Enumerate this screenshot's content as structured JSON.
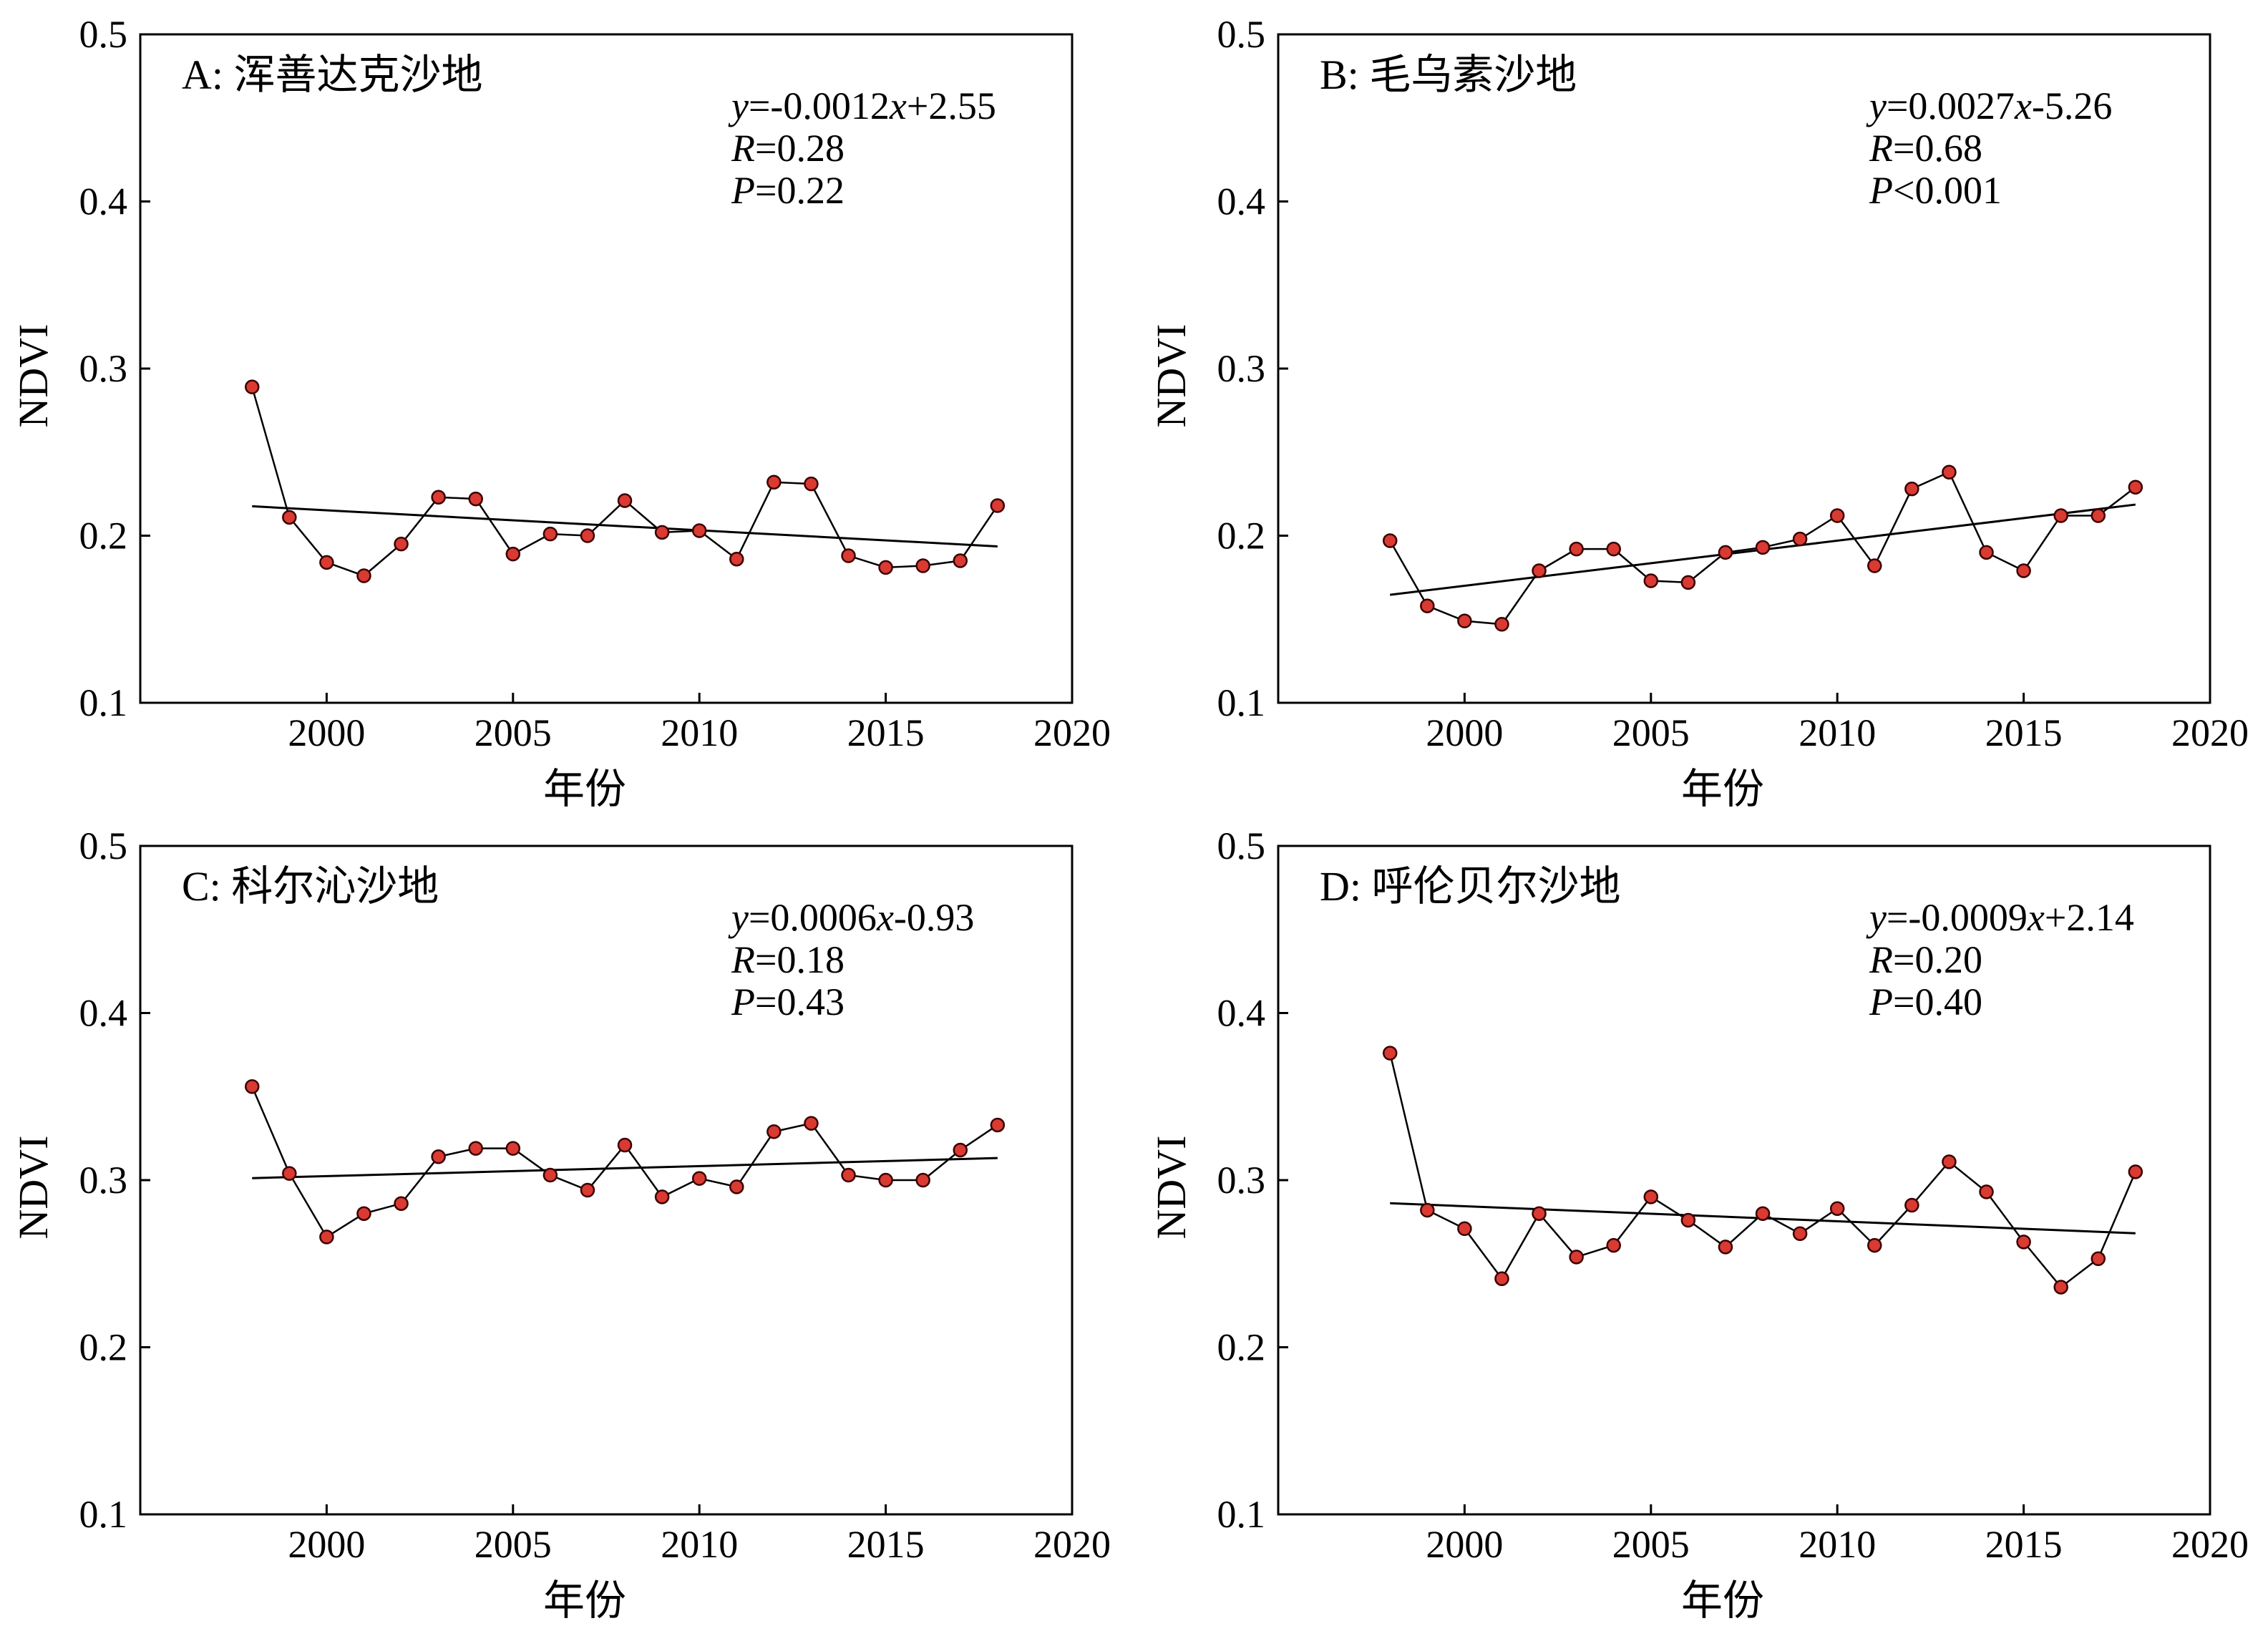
{
  "chart_data": [
    {
      "type": "line",
      "title": "A: 浑善达克沙地",
      "xlabel": "年份",
      "ylabel": "NDVI",
      "xlim": [
        1995,
        2020
      ],
      "ylim": [
        0.1,
        0.5
      ],
      "xticks": [
        2000,
        2005,
        2010,
        2015,
        2020
      ],
      "yticks": [
        0.1,
        0.2,
        0.3,
        0.4,
        0.5
      ],
      "x": [
        1998,
        1999,
        2000,
        2001,
        2002,
        2003,
        2004,
        2005,
        2006,
        2007,
        2008,
        2009,
        2010,
        2011,
        2012,
        2013,
        2014,
        2015,
        2016,
        2017,
        2018
      ],
      "series": [
        {
          "values": [
            0.289,
            0.211,
            0.184,
            0.176,
            0.195,
            0.223,
            0.222,
            0.189,
            0.201,
            0.2,
            0.221,
            0.202,
            0.203,
            0.186,
            0.232,
            0.231,
            0.188,
            0.181,
            0.182,
            0.185,
            0.218
          ]
        }
      ],
      "trend": {
        "x": [
          1998,
          2018
        ],
        "y": [
          0.2176,
          0.1936
        ]
      },
      "annotation": {
        "eq_y": "y",
        "eq_mid": "=-0.0012",
        "eq_x": "x",
        "eq_end": "+2.55",
        "r_sym": "R",
        "r_val": "=0.28",
        "p_sym": "P",
        "p_val": "=0.22"
      },
      "marker_color": "#d93a32",
      "grid": false
    },
    {
      "type": "line",
      "title": "B: 毛乌素沙地",
      "xlabel": "年份",
      "ylabel": "NDVI",
      "xlim": [
        1995,
        2020
      ],
      "ylim": [
        0.1,
        0.5
      ],
      "xticks": [
        2000,
        2005,
        2010,
        2015,
        2020
      ],
      "yticks": [
        0.1,
        0.2,
        0.3,
        0.4,
        0.5
      ],
      "x": [
        1998,
        1999,
        2000,
        2001,
        2002,
        2003,
        2004,
        2005,
        2006,
        2007,
        2008,
        2009,
        2010,
        2011,
        2012,
        2013,
        2014,
        2015,
        2016,
        2017,
        2018
      ],
      "series": [
        {
          "values": [
            0.197,
            0.158,
            0.149,
            0.147,
            0.179,
            0.192,
            0.192,
            0.173,
            0.172,
            0.19,
            0.193,
            0.198,
            0.212,
            0.182,
            0.228,
            0.238,
            0.19,
            0.179,
            0.212,
            0.212,
            0.229
          ]
        }
      ],
      "trend": {
        "x": [
          1998,
          2018
        ],
        "y": [
          0.1646,
          0.2186
        ]
      },
      "annotation": {
        "eq_y": "y",
        "eq_mid": "=0.0027",
        "eq_x": "x",
        "eq_end": "-5.26",
        "r_sym": "R",
        "r_val": "=0.68",
        "p_sym": "P",
        "p_val": "<0.001"
      },
      "marker_color": "#d93a32",
      "grid": false
    },
    {
      "type": "line",
      "title": "C: 科尔沁沙地",
      "xlabel": "年份",
      "ylabel": "NDVI",
      "xlim": [
        1995,
        2020
      ],
      "ylim": [
        0.1,
        0.5
      ],
      "xticks": [
        2000,
        2005,
        2010,
        2015,
        2020
      ],
      "yticks": [
        0.1,
        0.2,
        0.3,
        0.4,
        0.5
      ],
      "x": [
        1998,
        1999,
        2000,
        2001,
        2002,
        2003,
        2004,
        2005,
        2006,
        2007,
        2008,
        2009,
        2010,
        2011,
        2012,
        2013,
        2014,
        2015,
        2016,
        2017,
        2018
      ],
      "series": [
        {
          "values": [
            0.356,
            0.304,
            0.266,
            0.28,
            0.286,
            0.314,
            0.319,
            0.319,
            0.303,
            0.294,
            0.321,
            0.29,
            0.301,
            0.296,
            0.329,
            0.334,
            0.303,
            0.3,
            0.3,
            0.318,
            0.333
          ]
        }
      ],
      "trend": {
        "x": [
          1998,
          2018
        ],
        "y": [
          0.3012,
          0.3132
        ]
      },
      "annotation": {
        "eq_y": "y",
        "eq_mid": "=0.0006",
        "eq_x": "x",
        "eq_end": "-0.93",
        "r_sym": "R",
        "r_val": "=0.18",
        "p_sym": "P",
        "p_val": "=0.43"
      },
      "marker_color": "#d93a32",
      "grid": false
    },
    {
      "type": "line",
      "title": "D: 呼伦贝尔沙地",
      "xlabel": "年份",
      "ylabel": "NDVI",
      "xlim": [
        1995,
        2020
      ],
      "ylim": [
        0.1,
        0.5
      ],
      "xticks": [
        2000,
        2005,
        2010,
        2015,
        2020
      ],
      "yticks": [
        0.1,
        0.2,
        0.3,
        0.4,
        0.5
      ],
      "x": [
        1998,
        1999,
        2000,
        2001,
        2002,
        2003,
        2004,
        2005,
        2006,
        2007,
        2008,
        2009,
        2010,
        2011,
        2012,
        2013,
        2014,
        2015,
        2016,
        2017,
        2018
      ],
      "series": [
        {
          "values": [
            0.376,
            0.282,
            0.271,
            0.241,
            0.28,
            0.254,
            0.261,
            0.29,
            0.276,
            0.26,
            0.28,
            0.268,
            0.283,
            0.261,
            0.285,
            0.311,
            0.293,
            0.263,
            0.236,
            0.253,
            0.305
          ]
        }
      ],
      "trend": {
        "x": [
          1998,
          2018
        ],
        "y": [
          0.2862,
          0.2682
        ]
      },
      "annotation": {
        "eq_y": "y",
        "eq_mid": "=-0.0009",
        "eq_x": "x",
        "eq_end": "+2.14",
        "r_sym": "R",
        "r_val": "=0.20",
        "p_sym": "P",
        "p_val": "=0.40"
      },
      "marker_color": "#d93a32",
      "grid": false
    }
  ]
}
